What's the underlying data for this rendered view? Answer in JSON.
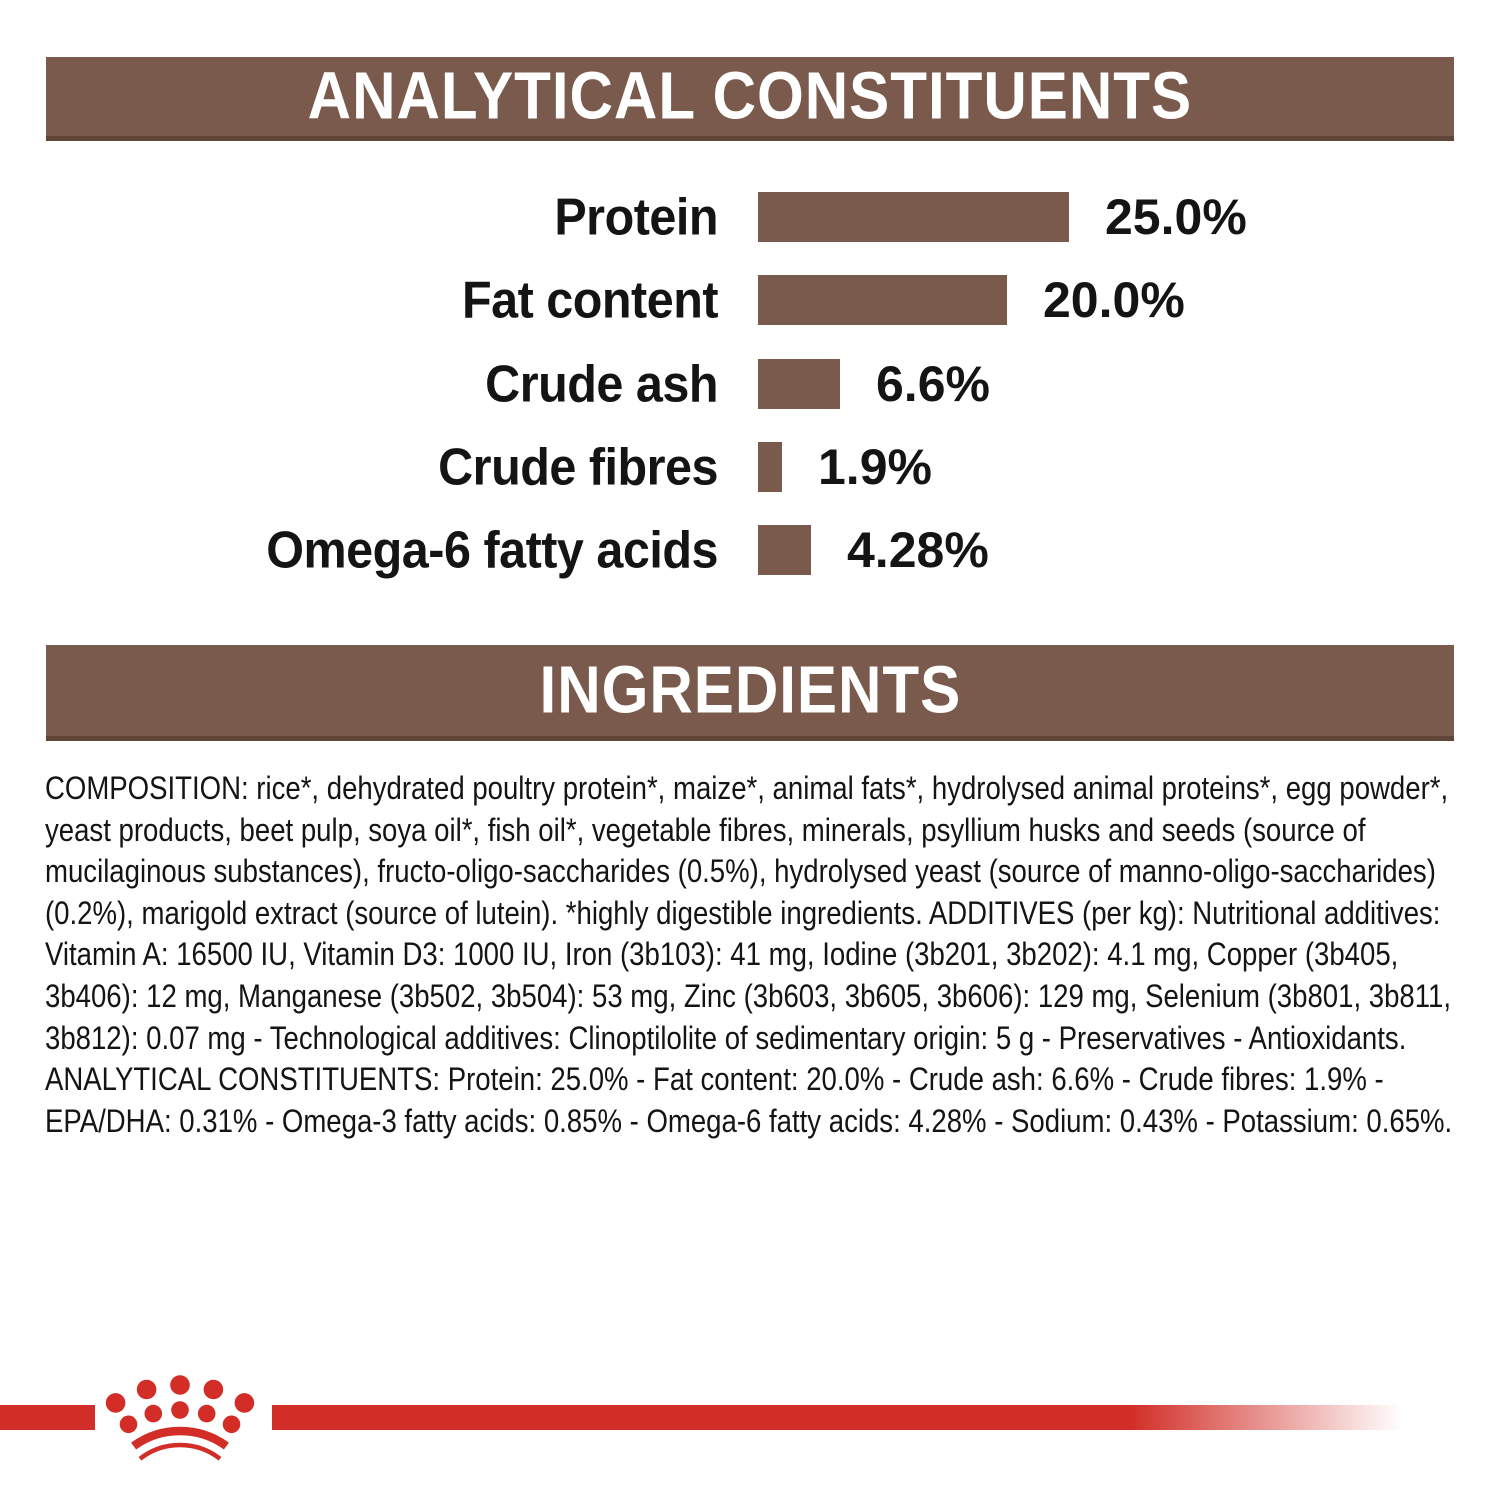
{
  "colors": {
    "brown": "#7a5a4c",
    "brown-dark": "#604539",
    "red": "#d22e27",
    "ink": "#141414",
    "paper": "#ffffff"
  },
  "header_analytical": {
    "title": "ANALYTICAL CONSTITUENTS"
  },
  "chart": {
    "rows": [
      {
        "label": "Protein",
        "value": "25.0%",
        "pct": 25.0
      },
      {
        "label": "Fat content",
        "value": "20.0%",
        "pct": 20.0
      },
      {
        "label": "Crude ash",
        "value": "6.6%",
        "pct": 6.6
      },
      {
        "label": "Crude fibres",
        "value": "1.9%",
        "pct": 1.9
      },
      {
        "label": "Omega-6 fatty acids",
        "value": "4.28%",
        "pct": 4.28
      }
    ]
  },
  "chart_data": {
    "type": "bar",
    "orientation": "horizontal",
    "title": "ANALYTICAL CONSTITUENTS",
    "categories": [
      "Protein",
      "Fat content",
      "Crude ash",
      "Crude fibres",
      "Omega-6 fatty acids"
    ],
    "values": [
      25.0,
      20.0,
      6.6,
      1.9,
      4.28
    ],
    "value_labels": [
      "25.0%",
      "20.0%",
      "6.6%",
      "1.9%",
      "4.28%"
    ],
    "unit": "%",
    "bar_color": "#7a5a4c",
    "grid": false,
    "axes_shown": false,
    "value_label_position": "right-of-bar",
    "xlim": [
      0,
      25
    ]
  },
  "header_ingredients": {
    "title": "INGREDIENTS"
  },
  "composition": {
    "text": "COMPOSITION: rice*, dehydrated poultry protein*, maize*, animal fats*, hydrolysed animal proteins*, egg powder*, yeast products, beet pulp, soya oil*, fish oil*, vegetable fibres, minerals, psyllium husks and seeds (source of mucilaginous substances), fructo-oligo-saccharides (0.5%), hydrolysed yeast (source of manno-oligo-saccharides) (0.2%), marigold extract (source of lutein). *highly digestible ingredients. ADDITIVES (per kg): Nutritional additives: Vitamin A: 16500 IU, Vitamin D3: 1000 IU, Iron (3b103): 41 mg, Iodine (3b201, 3b202): 4.1 mg, Copper (3b405, 3b406): 12 mg, Manganese (3b502, 3b504): 53 mg, Zinc (3b603, 3b605, 3b606): 129 mg, Selenium (3b801, 3b811, 3b812): 0.07 mg - Technological additives: Clinoptilolite of sedimentary origin: 5 g - Preservatives - Antioxidants. ANALYTICAL CONSTITUENTS: Protein: 25.0% - Fat content: 20.0% - Crude ash: 6.6% - Crude fibres: 1.9% - EPA/DHA: 0.31% - Omega-3 fatty acids: 0.85% - Omega-6 fatty acids: 4.28% - Sodium: 0.43% - Potassium: 0.65%."
  },
  "footer": {
    "logo": "royal-canin-crown",
    "logo_color": "#d22e27"
  }
}
